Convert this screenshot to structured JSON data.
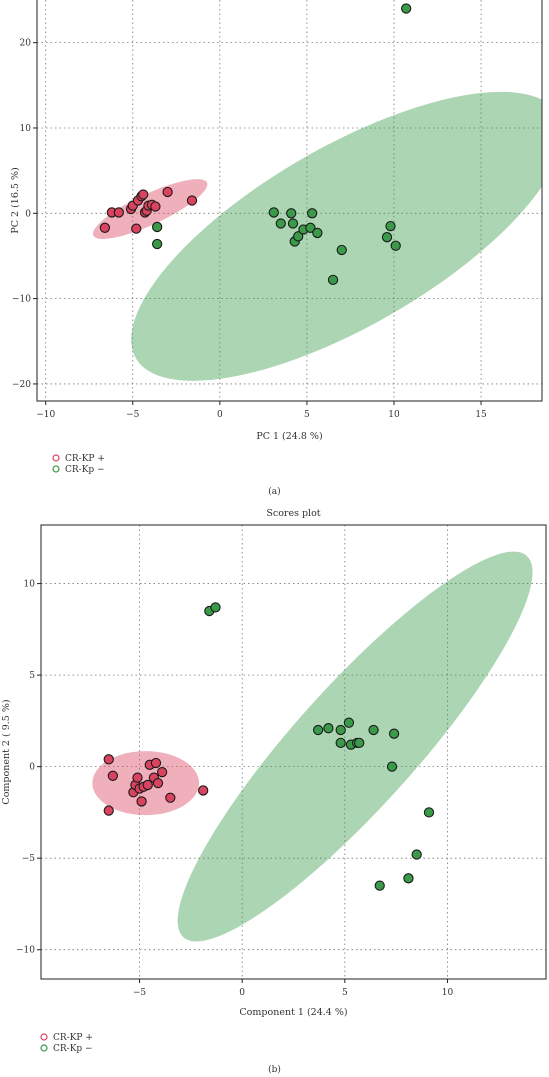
{
  "chart_data": [
    {
      "type": "scatter",
      "panel_label": "(a)",
      "title": "",
      "xlabel": "PC 1 (24.8 %)",
      "ylabel": "PC 2 (16.5 %)",
      "xlim": [
        -10.5,
        18.5
      ],
      "ylim": [
        -22,
        25
      ],
      "xticks": [
        -10,
        -5,
        0,
        5,
        10,
        15
      ],
      "yticks": [
        -20,
        -10,
        0,
        10,
        20
      ],
      "grid": true,
      "legend_position": "bottom-left",
      "series": [
        {
          "name": "CR-KP +",
          "color": "#d9435e",
          "ellipse": {
            "cx": -4.0,
            "cy": 0.5,
            "rx": 3.6,
            "ry": 1.8,
            "angle_deg": 25
          },
          "points": [
            {
              "x": -6.6,
              "y": -1.7
            },
            {
              "x": -6.2,
              "y": 0.1
            },
            {
              "x": -5.8,
              "y": 0.1
            },
            {
              "x": -5.1,
              "y": 0.5
            },
            {
              "x": -5.0,
              "y": 0.9
            },
            {
              "x": -4.8,
              "y": -1.8
            },
            {
              "x": -4.7,
              "y": 1.5
            },
            {
              "x": -4.5,
              "y": 2.0
            },
            {
              "x": -4.4,
              "y": 2.2
            },
            {
              "x": -4.3,
              "y": 0.1
            },
            {
              "x": -4.2,
              "y": 0.3
            },
            {
              "x": -4.1,
              "y": 0.9
            },
            {
              "x": -3.9,
              "y": 1.0
            },
            {
              "x": -3.7,
              "y": 0.8
            },
            {
              "x": -3.0,
              "y": 2.5
            },
            {
              "x": -1.6,
              "y": 1.5
            }
          ]
        },
        {
          "name": "CR-Kp −",
          "color": "#3a9a4a",
          "ellipse": {
            "cx": 7.3,
            "cy": -2.7,
            "rx": 14.0,
            "ry": 10.5,
            "angle_deg": 30
          },
          "points": [
            {
              "x": -3.6,
              "y": -1.6
            },
            {
              "x": -3.6,
              "y": -3.6
            },
            {
              "x": 3.1,
              "y": 0.1
            },
            {
              "x": 3.5,
              "y": -1.2
            },
            {
              "x": 4.1,
              "y": 0.0
            },
            {
              "x": 4.2,
              "y": -1.2
            },
            {
              "x": 4.3,
              "y": -3.3
            },
            {
              "x": 4.5,
              "y": -2.7
            },
            {
              "x": 4.8,
              "y": -1.9
            },
            {
              "x": 5.2,
              "y": -1.7
            },
            {
              "x": 5.3,
              "y": 0.0
            },
            {
              "x": 5.6,
              "y": -2.3
            },
            {
              "x": 6.5,
              "y": -7.8
            },
            {
              "x": 7.0,
              "y": -4.3
            },
            {
              "x": 9.6,
              "y": -2.8
            },
            {
              "x": 9.8,
              "y": -1.5
            },
            {
              "x": 10.1,
              "y": -3.8
            },
            {
              "x": 10.7,
              "y": 24.0
            }
          ]
        }
      ]
    },
    {
      "type": "scatter",
      "panel_label": "(b)",
      "title": "Scores plot",
      "xlabel": "Component 1 (24.4 %)",
      "ylabel": "Component 2 ( 9.5 %)",
      "xlim": [
        -9.8,
        14.8
      ],
      "ylim": [
        -11.6,
        13.2
      ],
      "xticks": [
        -5,
        0,
        5,
        10
      ],
      "yticks": [
        -10,
        -5,
        0,
        5,
        10
      ],
      "grid": true,
      "legend_position": "bottom-left",
      "series": [
        {
          "name": "CR-KP +",
          "color": "#d9435e",
          "ellipse": {
            "cx": -4.7,
            "cy": -0.9,
            "rx": 2.6,
            "ry": 1.75,
            "angle_deg": 0
          },
          "points": [
            {
              "x": -6.5,
              "y": 0.4
            },
            {
              "x": -6.3,
              "y": -0.5
            },
            {
              "x": -6.5,
              "y": -2.4
            },
            {
              "x": -5.3,
              "y": -1.4
            },
            {
              "x": -5.2,
              "y": -1.0
            },
            {
              "x": -5.1,
              "y": -0.6
            },
            {
              "x": -5.0,
              "y": -1.2
            },
            {
              "x": -4.9,
              "y": -1.9
            },
            {
              "x": -4.8,
              "y": -1.1
            },
            {
              "x": -4.6,
              "y": -1.0
            },
            {
              "x": -4.5,
              "y": 0.1
            },
            {
              "x": -4.3,
              "y": -0.6
            },
            {
              "x": -4.2,
              "y": 0.2
            },
            {
              "x": -4.1,
              "y": -0.9
            },
            {
              "x": -3.9,
              "y": -0.3
            },
            {
              "x": -3.5,
              "y": -1.7
            },
            {
              "x": -1.9,
              "y": -1.3
            }
          ]
        },
        {
          "name": "CR-Kp −",
          "color": "#3a9a4a",
          "ellipse": {
            "cx": 5.5,
            "cy": 1.1,
            "rx": 12.5,
            "ry": 3.3,
            "angle_deg": 48
          },
          "points": [
            {
              "x": -1.6,
              "y": 8.5
            },
            {
              "x": -1.3,
              "y": 8.7
            },
            {
              "x": 3.7,
              "y": 2.0
            },
            {
              "x": 4.2,
              "y": 2.1
            },
            {
              "x": 4.8,
              "y": 2.0
            },
            {
              "x": 4.8,
              "y": 1.3
            },
            {
              "x": 5.2,
              "y": 2.4
            },
            {
              "x": 5.3,
              "y": 1.2
            },
            {
              "x": 5.6,
              "y": 1.3
            },
            {
              "x": 5.7,
              "y": 1.3
            },
            {
              "x": 6.4,
              "y": 2.0
            },
            {
              "x": 7.4,
              "y": 1.8
            },
            {
              "x": 7.3,
              "y": 0.0
            },
            {
              "x": 9.1,
              "y": -2.5
            },
            {
              "x": 8.5,
              "y": -4.8
            },
            {
              "x": 8.1,
              "y": -6.1
            },
            {
              "x": 6.7,
              "y": -6.5
            }
          ]
        }
      ]
    }
  ]
}
